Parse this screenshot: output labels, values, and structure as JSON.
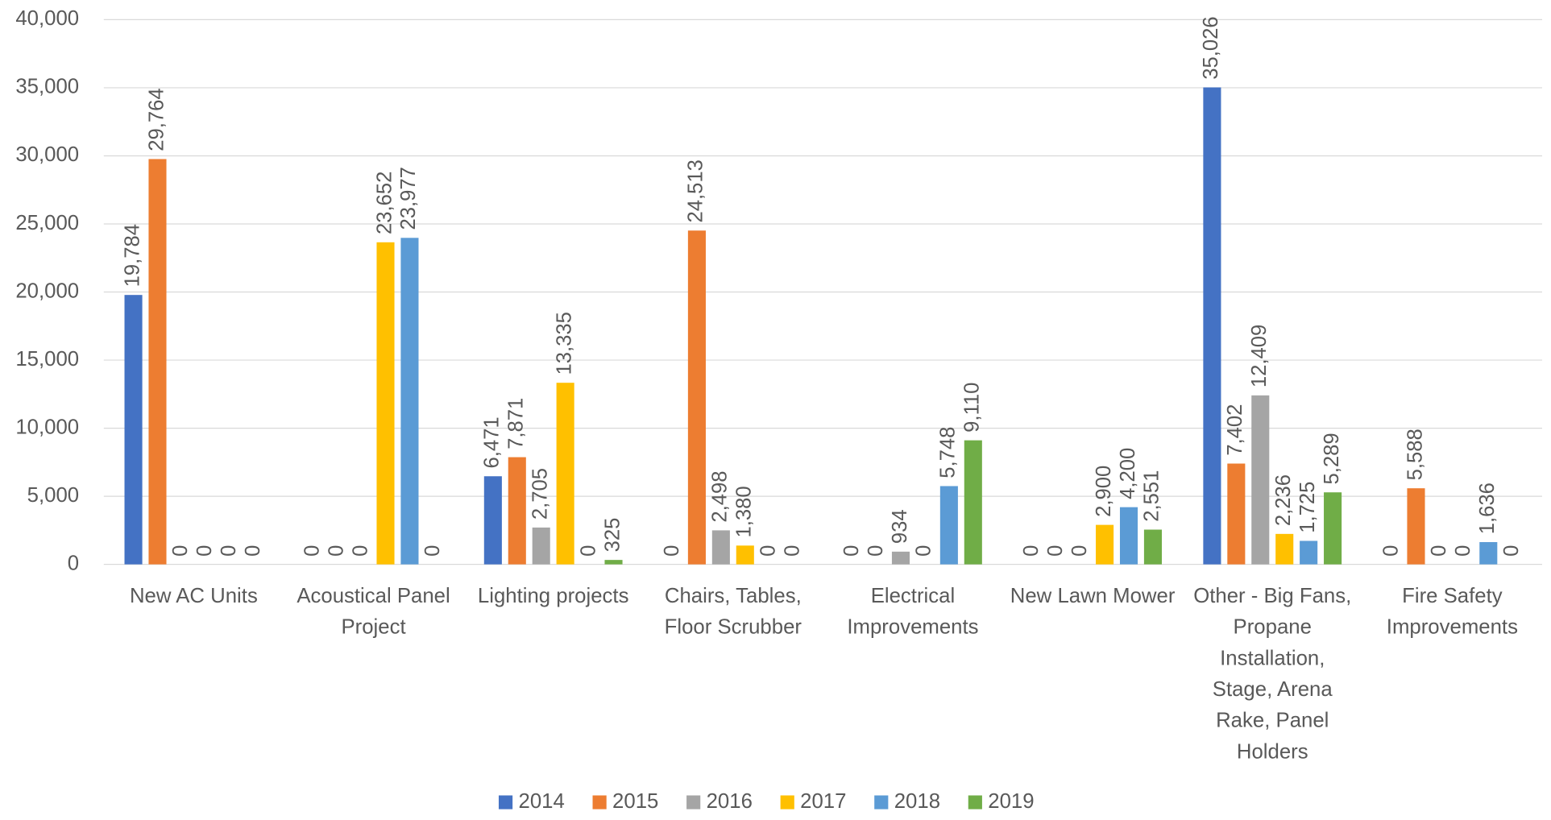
{
  "chart_data": {
    "type": "bar",
    "categories": [
      "New AC Units",
      "Acoustical Panel Project",
      "Lighting projects",
      "Chairs, Tables, Floor Scrubber",
      "Electrical Improvements",
      "New Lawn Mower",
      "Other - Big Fans, Propane Installation, Stage, Arena Rake, Panel Holders",
      "Fire Safety Improvements"
    ],
    "series": [
      {
        "name": "2014",
        "color": "#4472c4",
        "values": [
          19784,
          0,
          6471,
          0,
          0,
          0,
          35026,
          0
        ],
        "value_labels": [
          "19,784",
          "0",
          "6,471",
          "0",
          "0",
          "0",
          "35,026",
          "0"
        ]
      },
      {
        "name": "2015",
        "color": "#ed7d31",
        "values": [
          29764,
          0,
          7871,
          24513,
          0,
          0,
          7402,
          5588
        ],
        "value_labels": [
          "29,764",
          "0",
          "7,871",
          "24,513",
          "0",
          "0",
          "7,402",
          "5,588"
        ]
      },
      {
        "name": "2016",
        "color": "#a5a5a5",
        "values": [
          0,
          0,
          2705,
          2498,
          934,
          0,
          12409,
          0
        ],
        "value_labels": [
          "0",
          "0",
          "2,705",
          "2,498",
          "934",
          "0",
          "12,409",
          "0"
        ]
      },
      {
        "name": "2017",
        "color": "#ffc000",
        "values": [
          0,
          23652,
          13335,
          1380,
          0,
          2900,
          2236,
          0
        ],
        "value_labels": [
          "0",
          "23,652",
          "13,335",
          "1,380",
          "0",
          "2,900",
          "2,236",
          "0"
        ]
      },
      {
        "name": "2018",
        "color": "#5b9bd5",
        "values": [
          0,
          23977,
          0,
          0,
          5748,
          4200,
          1725,
          1636
        ],
        "value_labels": [
          "0",
          "23,977",
          "0",
          "0",
          "5,748",
          "4,200",
          "1,725",
          "1,636"
        ]
      },
      {
        "name": "2019",
        "color": "#70ad47",
        "values": [
          0,
          0,
          325,
          0,
          9110,
          2551,
          5289,
          0
        ],
        "value_labels": [
          "0",
          "0",
          "325",
          "0",
          "9,110",
          "2,551",
          "5,289",
          "0"
        ]
      }
    ],
    "ylim": [
      0,
      40000
    ],
    "yticks": [
      0,
      {
        "value": 5000,
        "label": "5,000"
      },
      {
        "value": 10000,
        "label": "10,000"
      },
      {
        "value": 15000,
        "label": "15,000"
      },
      {
        "value": 20000,
        "label": "20,000"
      },
      {
        "value": 25000,
        "label": "25,000"
      },
      {
        "value": 30000,
        "label": "30,000"
      },
      {
        "value": 35000,
        "label": "35,000"
      },
      {
        "value": 40000,
        "label": "40,000"
      }
    ],
    "grid": true,
    "legend": "bottom"
  }
}
